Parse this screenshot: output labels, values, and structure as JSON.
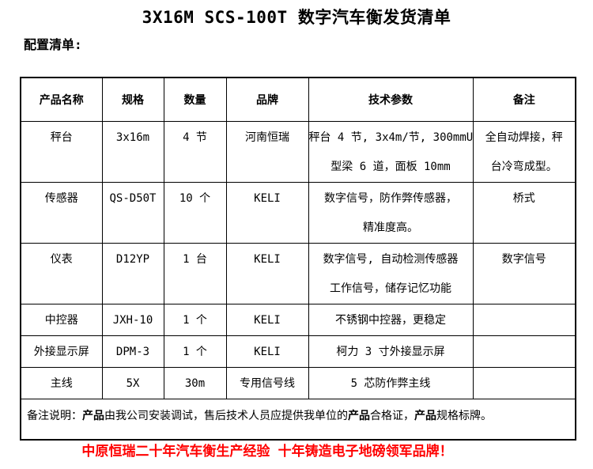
{
  "doc": {
    "title": "3X16M SCS-100T 数字汽车衡发货清单",
    "subtitle": "配置清单:",
    "slogan": "中原恒瑞二十年汽车衡生产经验 十年铸造电子地磅领军品牌！",
    "colors": {
      "text": "#000000",
      "slogan_red": "#FF0000",
      "table_border": "#000000",
      "background": "#FFFFFF"
    }
  },
  "table": {
    "headers": [
      "产品名称",
      "规格",
      "数量",
      "品牌",
      "技术参数",
      "备注"
    ],
    "rows": [
      {
        "name": "秤台",
        "spec": "3x16m",
        "qty": "4 节",
        "brand": "河南恒瑞",
        "tech_lines": [
          "秤台 4 节, 3x4m/节, 300mmU",
          "型梁 6 道，面板 10mm"
        ],
        "note_lines": [
          "全自动焊接，秤",
          "台冷弯成型。"
        ]
      },
      {
        "name": "传感器",
        "spec": "QS-D50T",
        "qty": "10 个",
        "brand": "KELI",
        "tech_lines": [
          "数字信号，防作弊传感器，",
          "精准度高。"
        ],
        "note_lines": [
          "桥式"
        ]
      },
      {
        "name": "仪表",
        "spec": "D12YP",
        "qty": "1 台",
        "brand": "KELI",
        "tech_lines": [
          "数字信号, 自动检测传感器",
          "工作信号，储存记忆功能"
        ],
        "note_lines": [
          "数字信号"
        ]
      },
      {
        "name": "中控器",
        "spec": "JXH-10",
        "qty": "1 个",
        "brand": "KELI",
        "tech_lines": [
          "不锈钢中控器，更稳定"
        ],
        "note_lines": []
      },
      {
        "name": "外接显示屏",
        "spec": "DPM-3",
        "qty": "1 个",
        "brand": "KELI",
        "tech_lines": [
          "柯力 3 寸外接显示屏"
        ],
        "note_lines": []
      },
      {
        "name": "主线",
        "spec": "5X",
        "qty": "30m",
        "brand": "专用信号线",
        "tech_lines": [
          "5 芯防作弊主线"
        ],
        "note_lines": []
      }
    ],
    "footer_note": {
      "segments": [
        {
          "text": "备注说明：",
          "bold": false
        },
        {
          "text": "产品",
          "bold": true
        },
        {
          "text": "由我公司安装调试，售后技术人员应提供我单位的",
          "bold": false
        },
        {
          "text": "产品",
          "bold": true
        },
        {
          "text": "合格证，",
          "bold": false
        },
        {
          "text": "产品",
          "bold": true
        },
        {
          "text": "规格标牌。",
          "bold": false
        }
      ]
    }
  }
}
